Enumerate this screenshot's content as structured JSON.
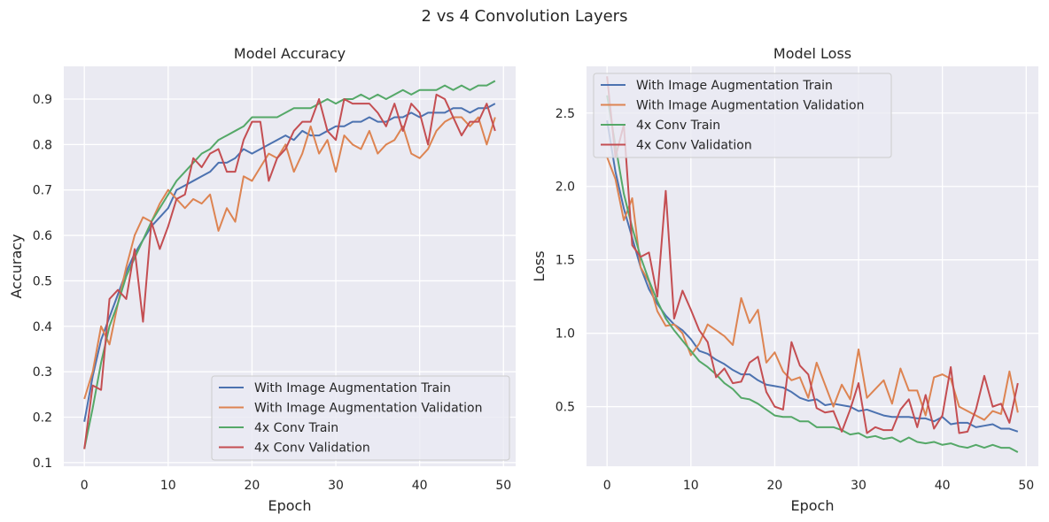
{
  "figure": {
    "suptitle": "2 vs 4 Convolution Layers",
    "background": "#ffffff",
    "axes_facecolor": "#eaeaf2",
    "grid_color": "#ffffff"
  },
  "chart_data": [
    {
      "type": "line",
      "title": "Model Accuracy",
      "xlabel": "Epoch",
      "ylabel": "Accuracy",
      "xlim": [
        -2.45,
        51.45
      ],
      "ylim": [
        0.092,
        0.972
      ],
      "xticks": [
        0,
        10,
        20,
        30,
        40,
        50
      ],
      "yticks": [
        0.1,
        0.2,
        0.3,
        0.4,
        0.5,
        0.6,
        0.7,
        0.8,
        0.9
      ],
      "ytick_labels": [
        "0.1",
        "0.2",
        "0.3",
        "0.4",
        "0.5",
        "0.6",
        "0.7",
        "0.8",
        "0.9"
      ],
      "grid": true,
      "legend_loc": "lower right",
      "series": [
        {
          "name": "With Image Augmentation Train",
          "color": "#4c72b0",
          "values": [
            0.19,
            0.29,
            0.37,
            0.42,
            0.47,
            0.52,
            0.56,
            0.59,
            0.62,
            0.64,
            0.66,
            0.7,
            0.71,
            0.72,
            0.73,
            0.74,
            0.76,
            0.76,
            0.77,
            0.79,
            0.78,
            0.79,
            0.8,
            0.81,
            0.82,
            0.81,
            0.83,
            0.82,
            0.82,
            0.83,
            0.84,
            0.84,
            0.85,
            0.85,
            0.86,
            0.85,
            0.85,
            0.86,
            0.86,
            0.87,
            0.86,
            0.87,
            0.87,
            0.87,
            0.88,
            0.88,
            0.87,
            0.88,
            0.88,
            0.89
          ]
        },
        {
          "name": "With Image Augmentation Validation",
          "color": "#dd8452",
          "values": [
            0.24,
            0.3,
            0.4,
            0.36,
            0.45,
            0.53,
            0.6,
            0.64,
            0.63,
            0.67,
            0.7,
            0.68,
            0.66,
            0.68,
            0.67,
            0.69,
            0.61,
            0.66,
            0.63,
            0.73,
            0.72,
            0.75,
            0.78,
            0.77,
            0.8,
            0.74,
            0.78,
            0.84,
            0.78,
            0.81,
            0.74,
            0.82,
            0.8,
            0.79,
            0.83,
            0.78,
            0.8,
            0.81,
            0.84,
            0.78,
            0.77,
            0.79,
            0.83,
            0.85,
            0.86,
            0.86,
            0.84,
            0.86,
            0.8,
            0.86
          ]
        },
        {
          "name": "4x Conv Train",
          "color": "#55a868",
          "values": [
            0.13,
            0.22,
            0.32,
            0.4,
            0.45,
            0.51,
            0.55,
            0.59,
            0.63,
            0.66,
            0.69,
            0.72,
            0.74,
            0.76,
            0.78,
            0.79,
            0.81,
            0.82,
            0.83,
            0.84,
            0.86,
            0.86,
            0.86,
            0.86,
            0.87,
            0.88,
            0.88,
            0.88,
            0.89,
            0.9,
            0.89,
            0.9,
            0.9,
            0.91,
            0.9,
            0.91,
            0.9,
            0.91,
            0.92,
            0.91,
            0.92,
            0.92,
            0.92,
            0.93,
            0.92,
            0.93,
            0.92,
            0.93,
            0.93,
            0.94
          ]
        },
        {
          "name": "4x Conv Validation",
          "color": "#c44e52",
          "values": [
            0.13,
            0.27,
            0.26,
            0.46,
            0.48,
            0.46,
            0.57,
            0.41,
            0.63,
            0.57,
            0.62,
            0.68,
            0.69,
            0.77,
            0.75,
            0.78,
            0.79,
            0.74,
            0.74,
            0.81,
            0.85,
            0.85,
            0.72,
            0.77,
            0.79,
            0.83,
            0.85,
            0.85,
            0.9,
            0.83,
            0.81,
            0.9,
            0.89,
            0.89,
            0.89,
            0.87,
            0.84,
            0.89,
            0.83,
            0.89,
            0.87,
            0.8,
            0.91,
            0.9,
            0.86,
            0.82,
            0.85,
            0.85,
            0.89,
            0.83
          ]
        }
      ]
    },
    {
      "type": "line",
      "title": "Model Loss",
      "xlabel": "Epoch",
      "ylabel": "Loss",
      "xlim": [
        -2.45,
        51.45
      ],
      "ylim": [
        0.094,
        2.818
      ],
      "xticks": [
        0,
        10,
        20,
        30,
        40,
        50
      ],
      "yticks": [
        0.5,
        1.0,
        1.5,
        2.0,
        2.5
      ],
      "ytick_labels": [
        "0.5",
        "1.0",
        "1.5",
        "2.0",
        "2.5"
      ],
      "grid": true,
      "legend_loc": "upper left",
      "series": [
        {
          "name": "With Image Augmentation Train",
          "color": "#4c72b0",
          "values": [
            2.45,
            2.1,
            1.85,
            1.65,
            1.45,
            1.3,
            1.2,
            1.12,
            1.06,
            1.02,
            0.96,
            0.88,
            0.86,
            0.82,
            0.79,
            0.75,
            0.72,
            0.72,
            0.68,
            0.65,
            0.64,
            0.63,
            0.6,
            0.56,
            0.54,
            0.55,
            0.51,
            0.52,
            0.51,
            0.5,
            0.47,
            0.48,
            0.46,
            0.44,
            0.43,
            0.43,
            0.43,
            0.42,
            0.42,
            0.4,
            0.43,
            0.38,
            0.39,
            0.39,
            0.36,
            0.37,
            0.38,
            0.35,
            0.35,
            0.33
          ]
        },
        {
          "name": "With Image Augmentation Validation",
          "color": "#dd8452",
          "values": [
            2.2,
            2.05,
            1.77,
            1.92,
            1.45,
            1.35,
            1.15,
            1.05,
            1.06,
            1.0,
            0.85,
            0.93,
            1.06,
            1.02,
            0.98,
            0.92,
            1.24,
            1.07,
            1.16,
            0.8,
            0.87,
            0.74,
            0.68,
            0.7,
            0.56,
            0.8,
            0.65,
            0.5,
            0.65,
            0.55,
            0.89,
            0.56,
            0.62,
            0.68,
            0.52,
            0.76,
            0.61,
            0.61,
            0.44,
            0.7,
            0.72,
            0.69,
            0.5,
            0.47,
            0.44,
            0.41,
            0.47,
            0.45,
            0.74,
            0.46
          ]
        },
        {
          "name": "4x Conv Train",
          "color": "#55a868",
          "values": [
            2.62,
            2.28,
            1.95,
            1.72,
            1.52,
            1.36,
            1.22,
            1.1,
            1.02,
            0.95,
            0.88,
            0.81,
            0.77,
            0.72,
            0.66,
            0.62,
            0.56,
            0.55,
            0.52,
            0.48,
            0.44,
            0.43,
            0.43,
            0.4,
            0.4,
            0.36,
            0.36,
            0.36,
            0.34,
            0.31,
            0.32,
            0.29,
            0.3,
            0.28,
            0.29,
            0.26,
            0.29,
            0.26,
            0.25,
            0.26,
            0.24,
            0.25,
            0.23,
            0.22,
            0.24,
            0.22,
            0.24,
            0.22,
            0.22,
            0.19
          ]
        },
        {
          "name": "4x Conv Validation",
          "color": "#c44e52",
          "values": [
            2.75,
            2.2,
            2.42,
            1.6,
            1.52,
            1.55,
            1.25,
            1.97,
            1.1,
            1.29,
            1.16,
            1.02,
            0.94,
            0.7,
            0.76,
            0.66,
            0.67,
            0.8,
            0.84,
            0.6,
            0.5,
            0.48,
            0.94,
            0.78,
            0.72,
            0.49,
            0.46,
            0.47,
            0.33,
            0.48,
            0.66,
            0.32,
            0.36,
            0.34,
            0.34,
            0.48,
            0.55,
            0.36,
            0.58,
            0.35,
            0.44,
            0.77,
            0.32,
            0.33,
            0.48,
            0.71,
            0.5,
            0.52,
            0.39,
            0.66
          ]
        }
      ]
    }
  ]
}
